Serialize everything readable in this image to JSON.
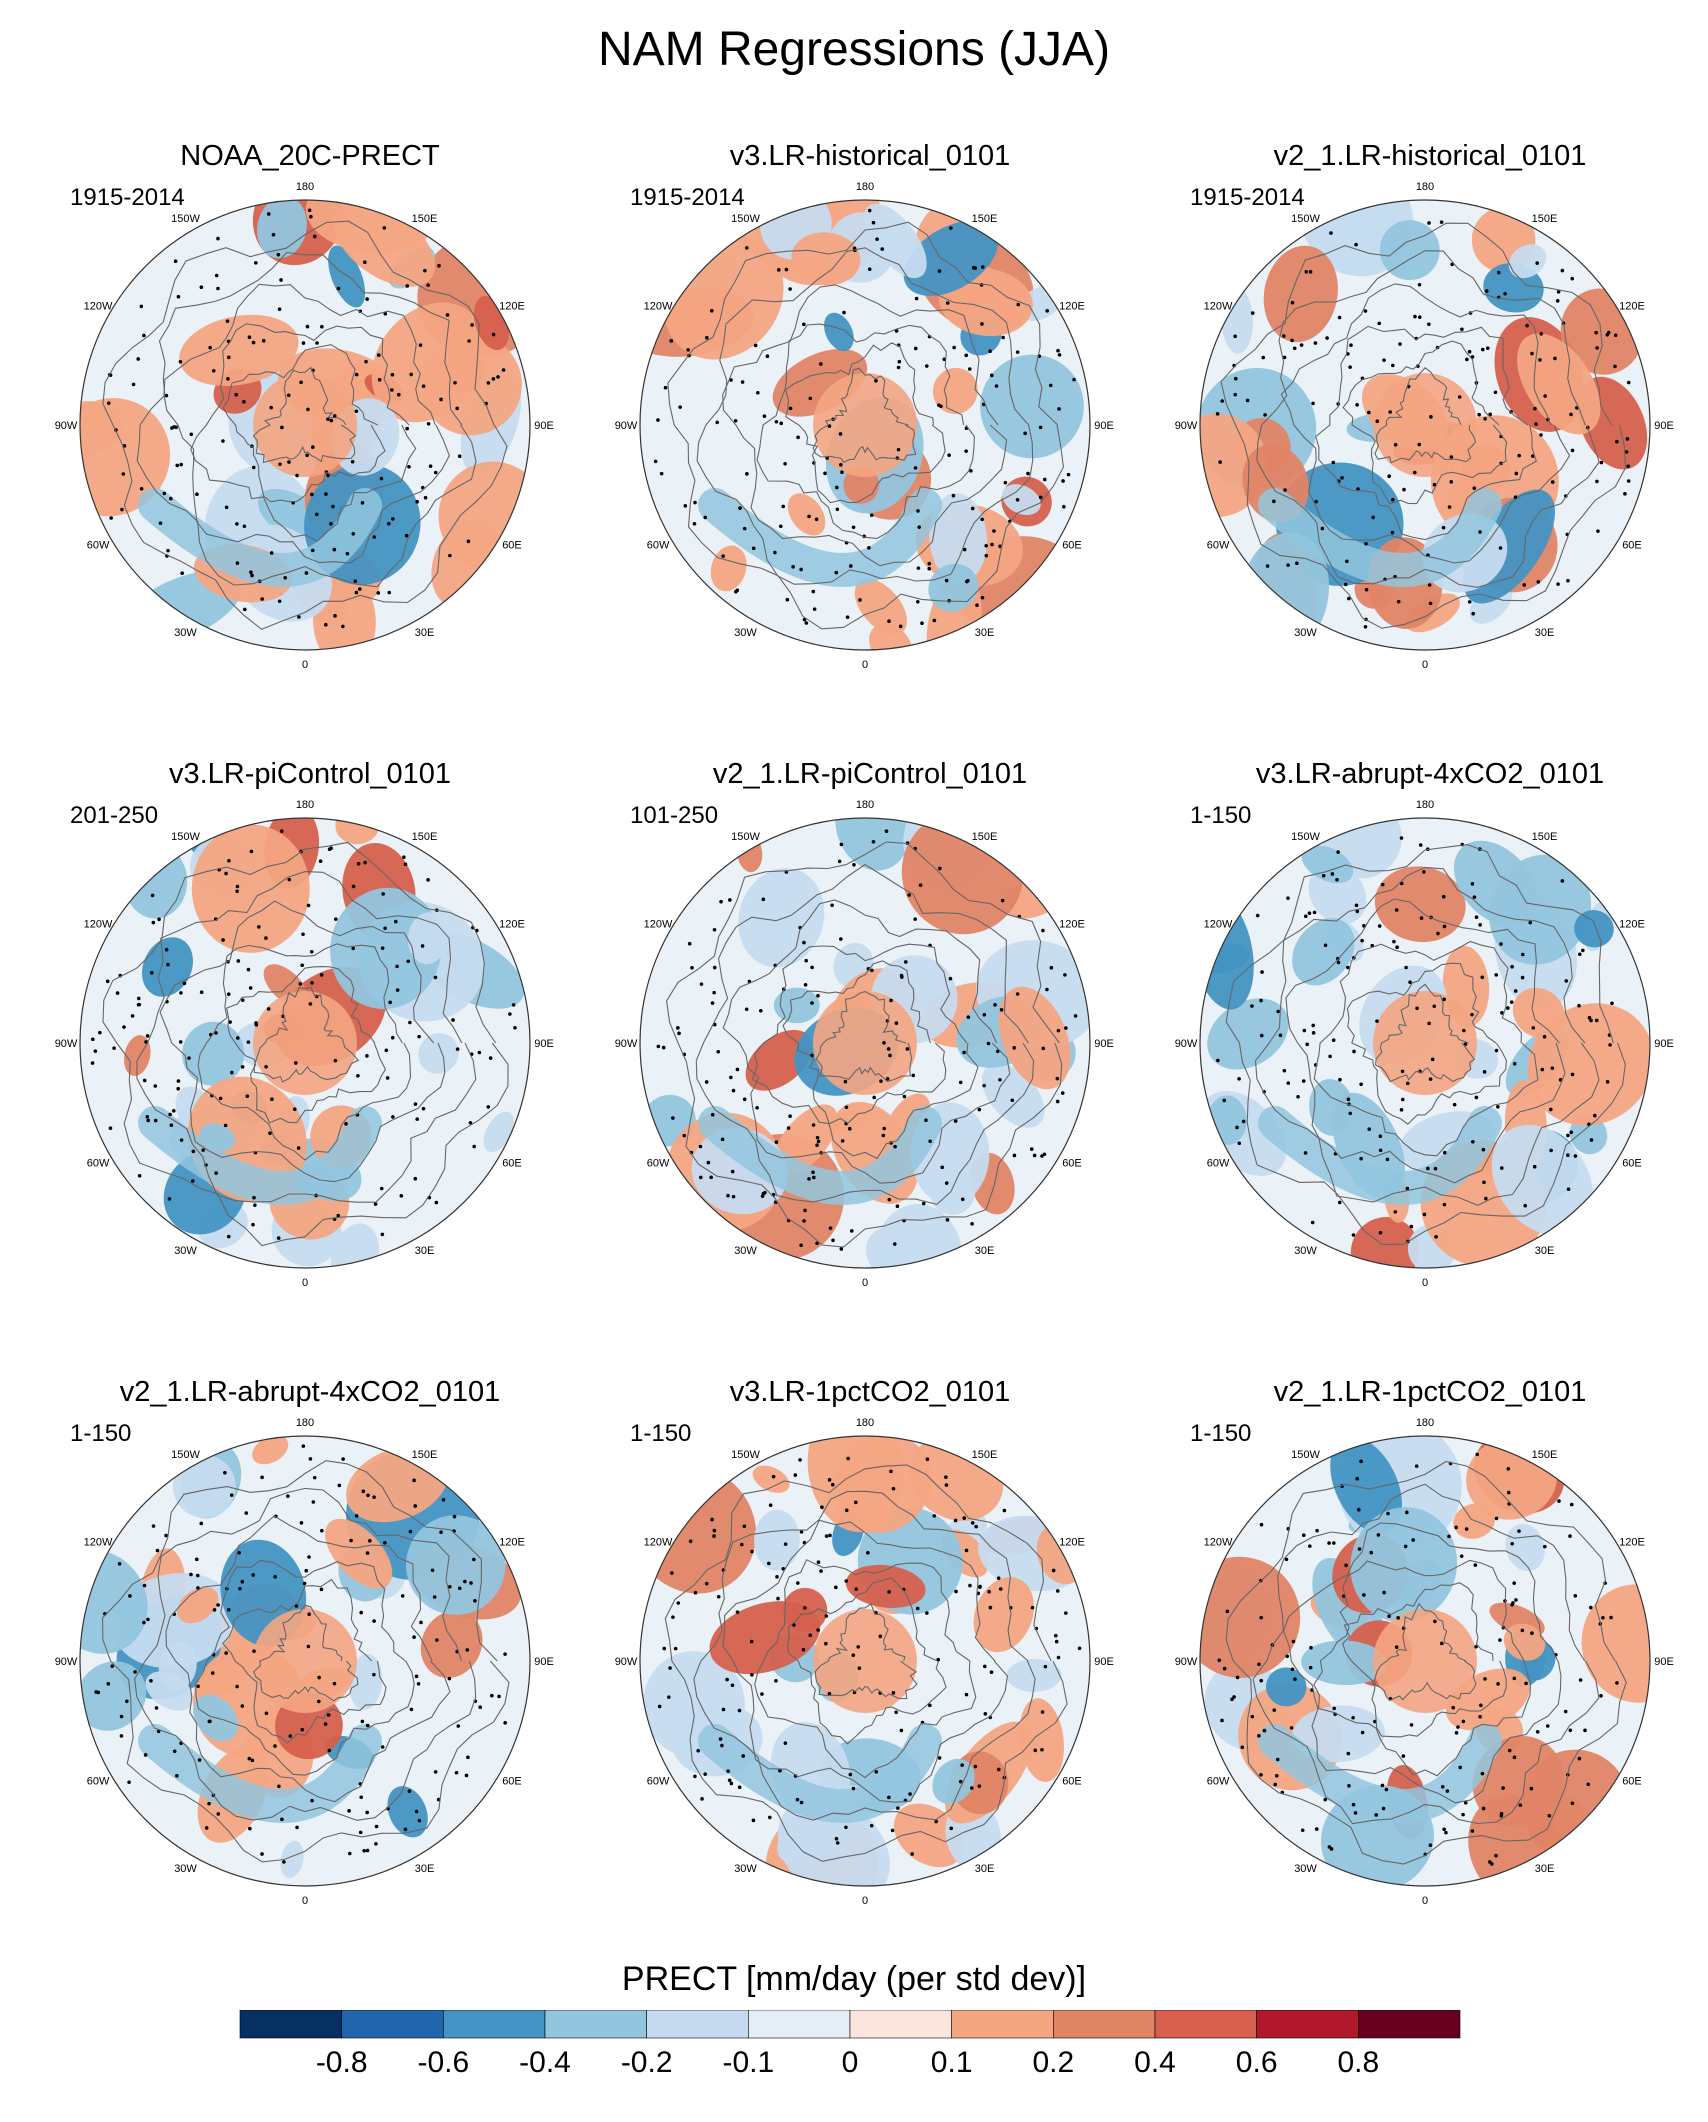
{
  "title": "NAM Regressions (JJA)",
  "longitude_labels": [
    "180",
    "150E",
    "120E",
    "90E",
    "60E",
    "30E",
    "0",
    "30W",
    "60W",
    "90W",
    "120W",
    "150W"
  ],
  "panels": [
    {
      "title": "NOAA_20C-PRECT",
      "period": "1915-2014"
    },
    {
      "title": "v3.LR-historical_0101",
      "period": "1915-2014"
    },
    {
      "title": "v2_1.LR-historical_0101",
      "period": "1915-2014"
    },
    {
      "title": "v3.LR-piControl_0101",
      "period": "201-250"
    },
    {
      "title": "v2_1.LR-piControl_0101",
      "period": "101-250"
    },
    {
      "title": "v3.LR-abrupt-4xCO2_0101",
      "period": "1-150"
    },
    {
      "title": "v2_1.LR-abrupt-4xCO2_0101",
      "period": "1-150"
    },
    {
      "title": "v3.LR-1pctCO2_0101",
      "period": "1-150"
    },
    {
      "title": "v2_1.LR-1pctCO2_0101",
      "period": "1-150"
    }
  ],
  "colorbar": {
    "title": "PRECT [mm/day (per std dev)]",
    "tick_labels": [
      "-0.8",
      "-0.6",
      "-0.4",
      "-0.2",
      "-0.1",
      "0",
      "0.1",
      "0.2",
      "0.4",
      "0.6",
      "0.8"
    ],
    "colors": [
      "#053061",
      "#2166ac",
      "#4393c3",
      "#92c5de",
      "#c6dbef",
      "#e5eef5",
      "#fbe5dc",
      "#f4a582",
      "#e08466",
      "#d6604d",
      "#b2182b",
      "#67001f"
    ]
  },
  "chart_data": {
    "type": "heatmap",
    "projection": "north polar stereographic",
    "variable": "PRECT",
    "units": "mm/day (per std dev)",
    "levels": [
      -0.8,
      -0.6,
      -0.4,
      -0.2,
      -0.1,
      0,
      0.1,
      0.2,
      0.4,
      0.6,
      0.8
    ],
    "stippling": "statistically significant regions",
    "panel_count": 9
  }
}
